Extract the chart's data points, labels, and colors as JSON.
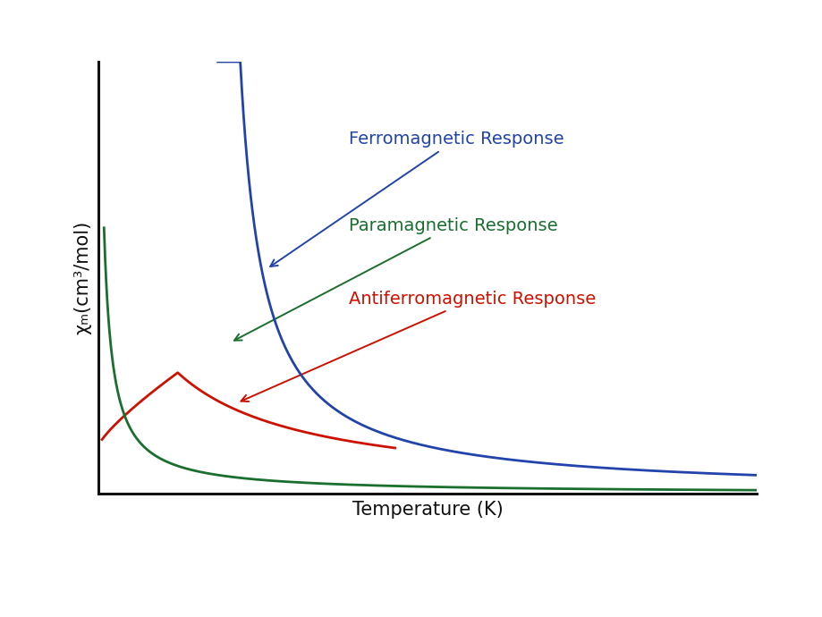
{
  "title": "",
  "xlabel": "Temperature (K)",
  "ylabel": "χₘ(cm³/mol)",
  "background_color": "#ffffff",
  "ferromagnetic_color": "#2244aa",
  "paramagnetic_color": "#1a6e2e",
  "antiferromagnetic_color": "#cc1100",
  "ferromagnetic_label": "Ferromagnetic Response",
  "paramagnetic_label": "Paramagnetic Response",
  "antiferromagnetic_label": "Antiferromagnetic Response",
  "xlabel_fontsize": 15,
  "ylabel_fontsize": 15,
  "label_fontsize": 14,
  "xlim": [
    0,
    10
  ],
  "ylim": [
    0,
    10
  ],
  "spine_linewidth": 2.2
}
